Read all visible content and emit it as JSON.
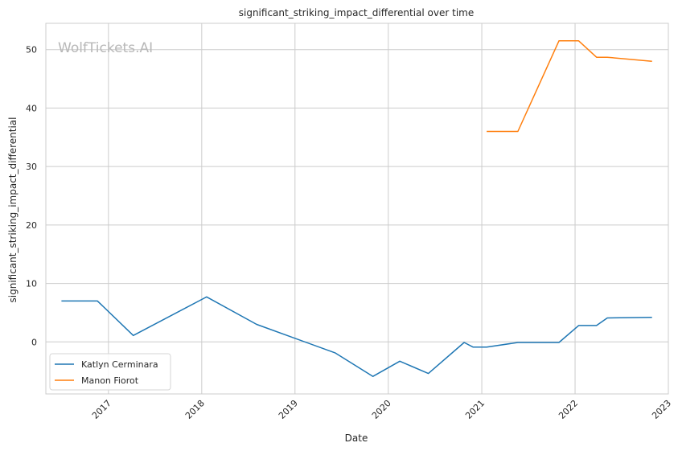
{
  "chart_data": {
    "type": "line",
    "title": "significant_striking_impact_differential over time",
    "xlabel": "Date",
    "ylabel": "significant_striking_impact_differential",
    "watermark": "WolfTickets.AI",
    "x_ticks": [
      "2017",
      "2018",
      "2019",
      "2020",
      "2021",
      "2022",
      "2023"
    ],
    "y_ticks": [
      0,
      10,
      20,
      30,
      40,
      50
    ],
    "xlim": [
      "2016-05-01",
      "2023-01-01"
    ],
    "ylim": [
      -8.9,
      54.5
    ],
    "grid": true,
    "legend_position": "lower-left",
    "series": [
      {
        "name": "Katlyn Cerminara",
        "color": "#1f77b4",
        "points": [
          [
            "2016-07-01",
            7.0
          ],
          [
            "2016-11-19",
            7.0
          ],
          [
            "2017-04-08",
            1.1
          ],
          [
            "2018-01-20",
            7.7
          ],
          [
            "2018-08-04",
            3.0
          ],
          [
            "2019-06-08",
            -1.9
          ],
          [
            "2019-11-02",
            -5.9
          ],
          [
            "2020-02-15",
            -3.3
          ],
          [
            "2020-06-06",
            -5.4
          ],
          [
            "2020-10-24",
            -0.1
          ],
          [
            "2020-11-28",
            -0.9
          ],
          [
            "2021-01-20",
            -0.9
          ],
          [
            "2021-05-22",
            -0.1
          ],
          [
            "2021-10-30",
            -0.1
          ],
          [
            "2022-01-15",
            2.8
          ],
          [
            "2022-03-26",
            2.8
          ],
          [
            "2022-05-07",
            4.1
          ],
          [
            "2022-10-29",
            4.2
          ]
        ]
      },
      {
        "name": "Manon Fiorot",
        "color": "#ff7f0e",
        "points": [
          [
            "2021-01-20",
            36.0
          ],
          [
            "2021-05-22",
            36.0
          ],
          [
            "2021-10-30",
            51.5
          ],
          [
            "2022-01-15",
            51.5
          ],
          [
            "2022-03-26",
            48.7
          ],
          [
            "2022-05-07",
            48.7
          ],
          [
            "2022-10-29",
            48.0
          ]
        ]
      }
    ]
  }
}
